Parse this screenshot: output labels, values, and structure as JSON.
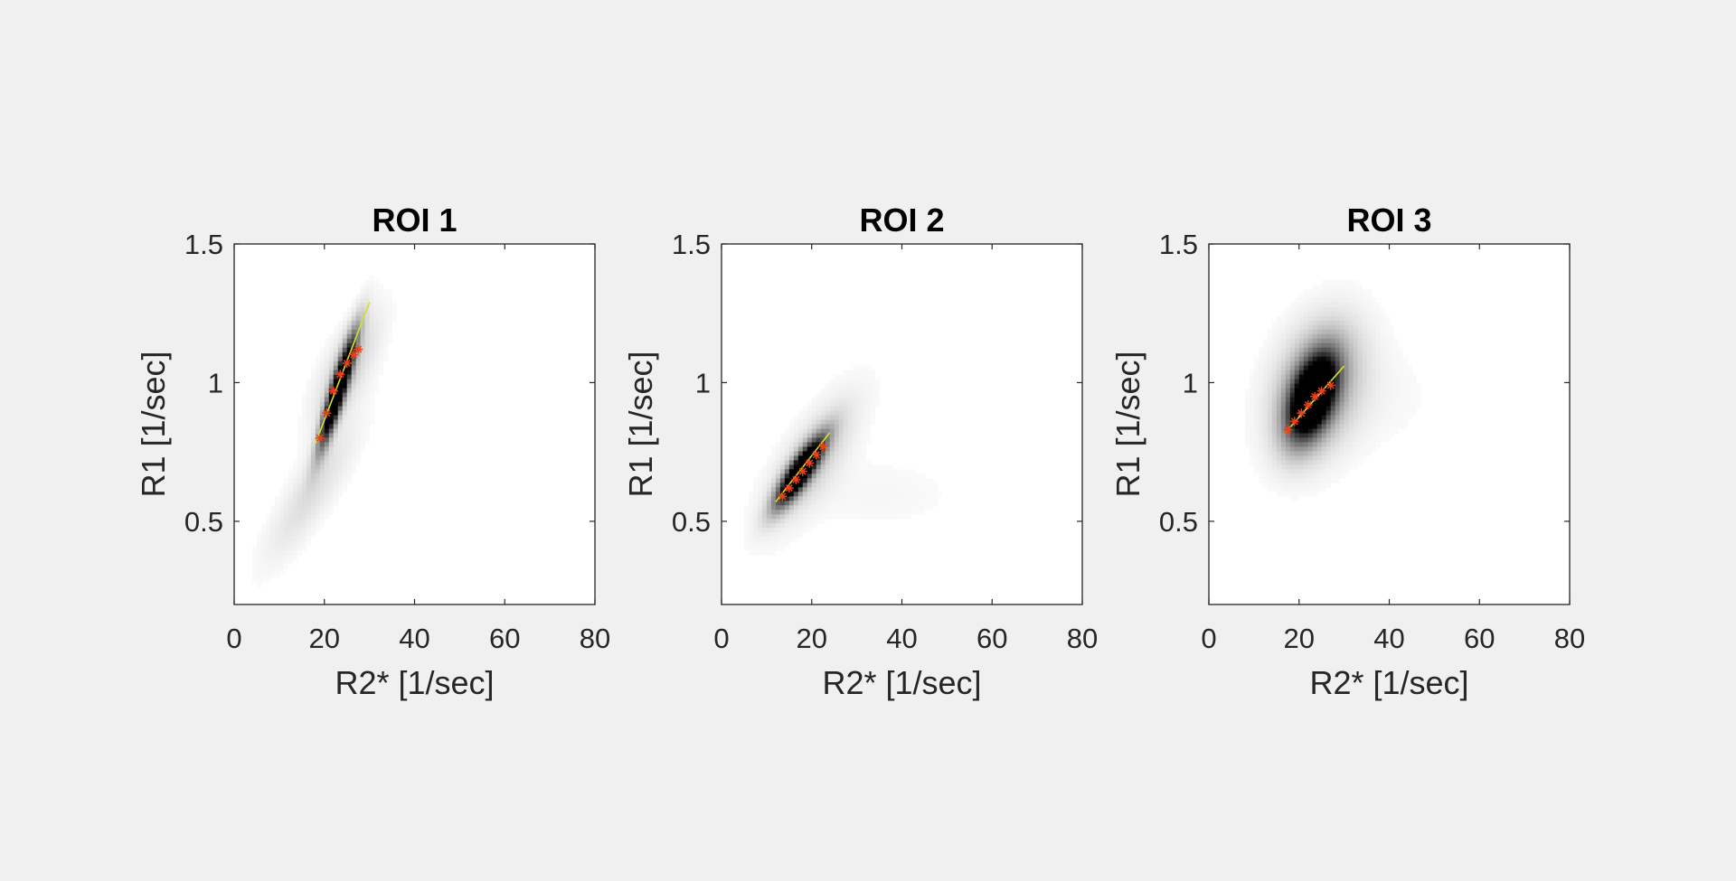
{
  "figure": {
    "background": "#f0f0f0",
    "axes_color": "#262626",
    "fit_line_color": "#d4e02a",
    "marker_color": "#e8401c"
  },
  "chart_data": [
    {
      "type": "heatmap",
      "title": "ROI 1",
      "xlabel": "R2* [1/sec]",
      "ylabel": "R1 [1/sec]",
      "xlim": [
        0,
        80
      ],
      "ylim": [
        0.2,
        1.5
      ],
      "xticks": [
        "0",
        "20",
        "40",
        "60",
        "80"
      ],
      "yticks": [
        "0.5",
        "1",
        "1.5"
      ],
      "grid": false,
      "density_blobs": [
        {
          "x": 23,
          "y": 0.97,
          "sx": 2.6,
          "sy": 0.13,
          "rho": 0.9,
          "w": 1.0
        },
        {
          "x": 17,
          "y": 0.6,
          "sx": 7,
          "sy": 0.17,
          "rho": 0.85,
          "w": 0.08
        },
        {
          "x": 25,
          "y": 1.05,
          "sx": 5,
          "sy": 0.14,
          "rho": 0.7,
          "w": 0.12
        }
      ],
      "fit_line": {
        "x": [
          18,
          30
        ],
        "y": [
          0.78,
          1.29
        ]
      },
      "markers": {
        "x": [
          19,
          20.5,
          22,
          23.5,
          25,
          26.5,
          27.5
        ],
        "y": [
          0.8,
          0.89,
          0.97,
          1.03,
          1.07,
          1.1,
          1.12
        ]
      }
    },
    {
      "type": "heatmap",
      "title": "ROI 2",
      "xlabel": "R2* [1/sec]",
      "ylabel": "R1 [1/sec]",
      "xlim": [
        0,
        80
      ],
      "ylim": [
        0.2,
        1.5
      ],
      "xticks": [
        "0",
        "20",
        "40",
        "60",
        "80"
      ],
      "yticks": [
        "0.5",
        "1",
        "1.5"
      ],
      "grid": false,
      "density_blobs": [
        {
          "x": 17.5,
          "y": 0.68,
          "sx": 3.5,
          "sy": 0.08,
          "rho": 0.85,
          "w": 1.0
        },
        {
          "x": 20,
          "y": 0.72,
          "sx": 7,
          "sy": 0.16,
          "rho": 0.75,
          "w": 0.12
        },
        {
          "x": 35,
          "y": 0.6,
          "sx": 14,
          "sy": 0.1,
          "rho": 0.0,
          "w": 0.02
        }
      ],
      "fit_line": {
        "x": [
          12,
          24
        ],
        "y": [
          0.57,
          0.82
        ]
      },
      "markers": {
        "x": [
          13.5,
          15,
          16.5,
          18,
          19.5,
          21,
          22.5
        ],
        "y": [
          0.59,
          0.62,
          0.65,
          0.68,
          0.71,
          0.74,
          0.77
        ]
      }
    },
    {
      "type": "heatmap",
      "title": "ROI 3",
      "xlabel": "R2* [1/sec]",
      "ylabel": "R1 [1/sec]",
      "xlim": [
        0,
        80
      ],
      "ylim": [
        0.2,
        1.5
      ],
      "xticks": [
        "0",
        "20",
        "40",
        "60",
        "80"
      ],
      "yticks": [
        "0.5",
        "1",
        "1.5"
      ],
      "grid": false,
      "density_blobs": [
        {
          "x": 23,
          "y": 0.95,
          "sx": 3.5,
          "sy": 0.1,
          "rho": 0.45,
          "w": 1.0
        },
        {
          "x": 24,
          "y": 0.98,
          "sx": 6.5,
          "sy": 0.16,
          "rho": 0.3,
          "w": 0.25
        },
        {
          "x": 35,
          "y": 0.95,
          "sx": 12,
          "sy": 0.15,
          "rho": 0.0,
          "w": 0.02
        }
      ],
      "fit_line": {
        "x": [
          17,
          30
        ],
        "y": [
          0.82,
          1.06
        ]
      },
      "markers": {
        "x": [
          17.5,
          19,
          20.5,
          22,
          23.5,
          25,
          27
        ],
        "y": [
          0.83,
          0.86,
          0.89,
          0.92,
          0.95,
          0.97,
          0.99
        ]
      }
    }
  ]
}
